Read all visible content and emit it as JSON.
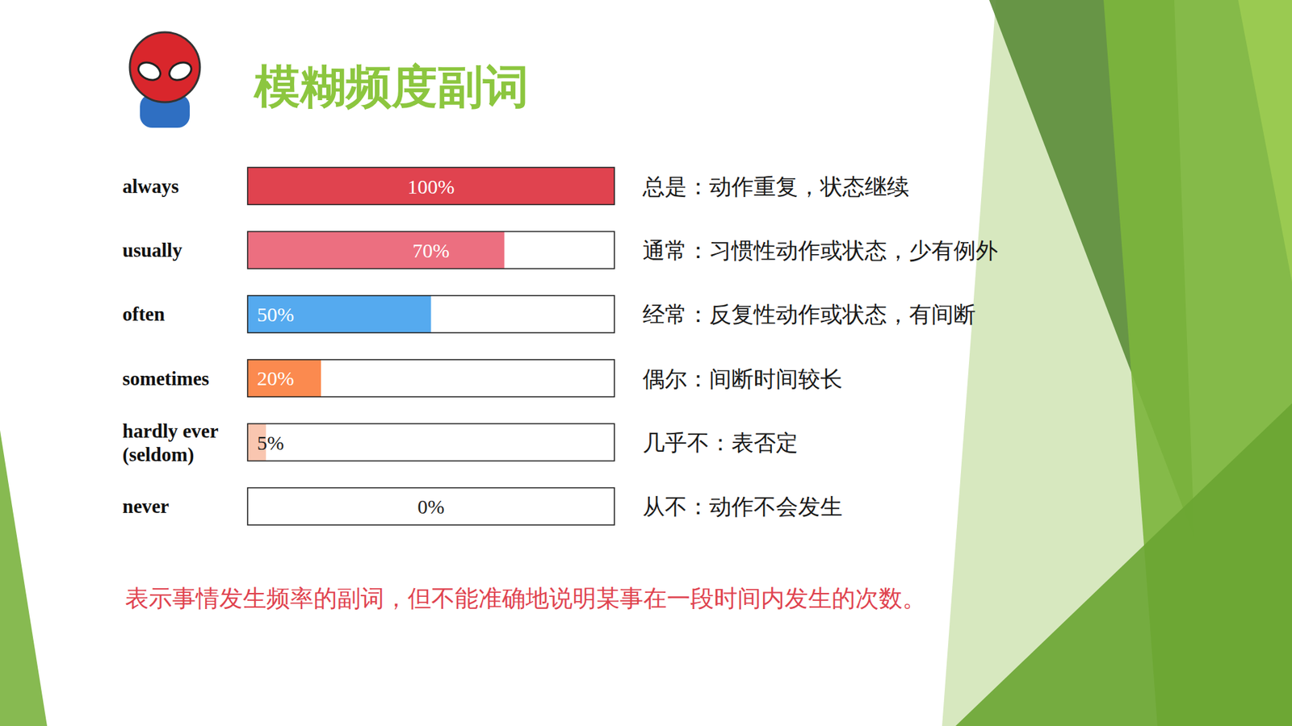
{
  "chart_data": {
    "type": "bar",
    "orientation": "horizontal",
    "title": "模糊频度副词",
    "categories": [
      "always",
      "usually",
      "often",
      "sometimes",
      "hardly ever\n(seldom)",
      "never"
    ],
    "values": [
      100,
      70,
      50,
      20,
      5,
      0
    ],
    "value_labels": [
      "100%",
      "70%",
      "50%",
      "20%",
      "5%",
      "0%"
    ],
    "colors": [
      "#e0434f",
      "#ec6f80",
      "#55aaef",
      "#fb8a4f",
      "#f9c6b0",
      "#ffffff"
    ],
    "xlim": [
      0,
      100
    ],
    "tick_labels": false,
    "data_labels": true,
    "annotations": [
      "总是：动作重复，状态继续",
      "通常：习惯性动作或状态，少有例外",
      "经常：反复性动作或状态，有间断",
      "偶尔：间断时间较长",
      "几乎不：表否定",
      "从不：动作不会发生"
    ],
    "note": "表示事情发生频率的副词，但不能准确地说明某事在一段时间内发生的次数。"
  }
}
